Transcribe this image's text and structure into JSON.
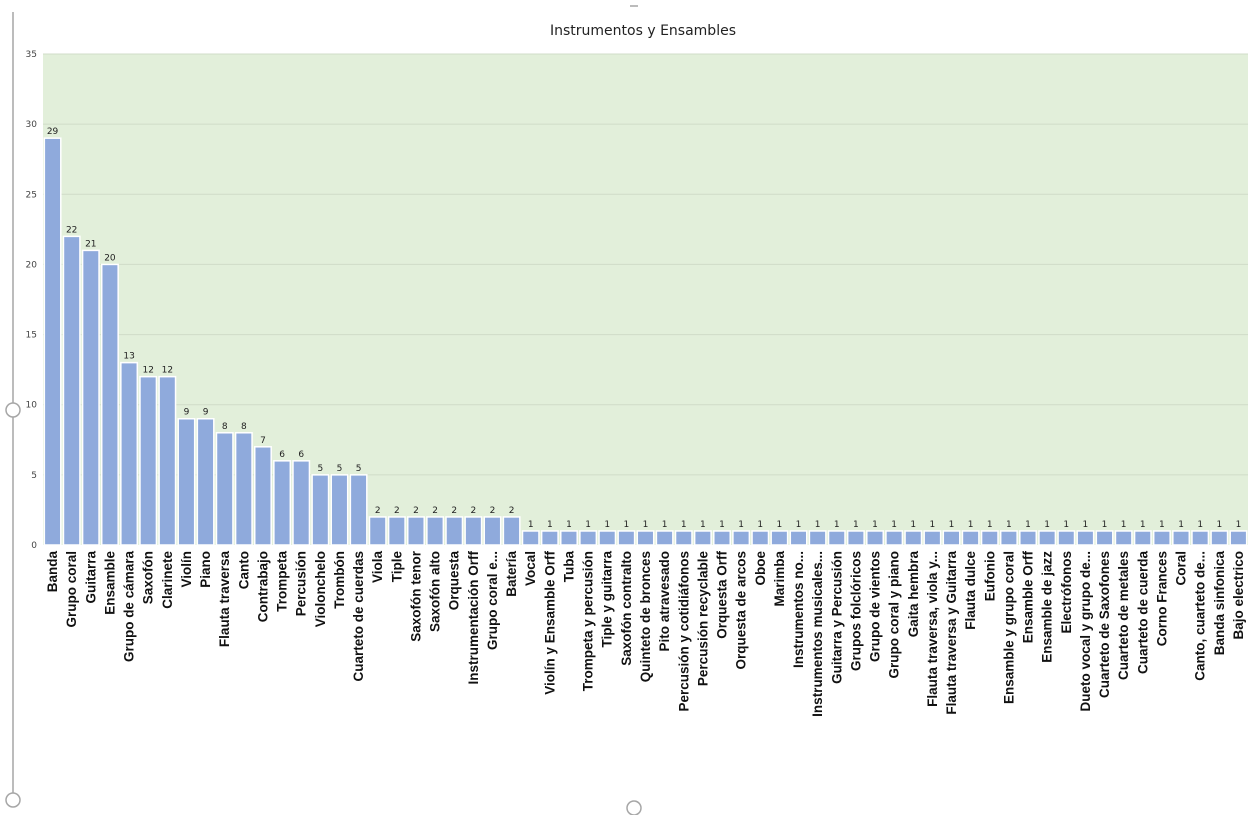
{
  "chart_data": {
    "type": "bar",
    "title": "Instrumentos y Ensambles",
    "xlabel": "",
    "ylabel": "",
    "ylim": [
      0,
      35
    ],
    "yticks": [
      0,
      5,
      10,
      15,
      20,
      25,
      30,
      35
    ],
    "grid": true,
    "legend": "none",
    "colors": {
      "bar": "#8faadc",
      "plot_background": "#e2efda",
      "gridline": "#d0dcc8",
      "frame": "#a6a6a6"
    },
    "categories": [
      "Banda",
      "Grupo coral",
      "Guitarra",
      "Ensamble",
      "Grupo de cámara",
      "Saxofón",
      "Clarinete",
      "Violín",
      "Piano",
      "Flauta traversa",
      "Canto",
      "Contrabajo",
      "Trompeta",
      "Percusión",
      "Violonchelo",
      "Trombón",
      "Cuarteto de cuerdas",
      "Viola",
      "Tiple",
      "Saxofón tenor",
      "Saxofón alto",
      "Orquesta",
      "Instrumentación Orff",
      "Grupo coral e...",
      "Batería",
      "Vocal",
      "Violín y Ensamble Orff",
      "Tuba",
      "Trompeta y percusión",
      "Tiple y guitarra",
      "Saxofón contralto",
      "Quinteto de bronces",
      "Pito atravesado",
      "Percusión y cotidiáfonos",
      "Percusión recyclable",
      "Orquesta Orff",
      "Orquesta de arcos",
      "Oboe",
      "Marimba",
      "Instrumentos no...",
      "Instrumentos musicales...",
      "Guitarra y Percusión",
      "Grupos folclóricos",
      "Grupo de vientos",
      "Grupo coral y piano",
      "Gaita hembra",
      "Flauta traversa, viola y...",
      "Flauta traversa y Guitarra",
      "Flauta dulce",
      "Eufonio",
      "Ensamble y grupo coral",
      "Ensamble Orff",
      "Ensamble de jazz",
      "Electrófonos",
      "Dueto vocal y grupo de...",
      "Cuarteto de Saxofones",
      "Cuarteto de metales",
      "Cuarteto de cuerda",
      "Corno Frances",
      "Coral",
      "Canto, cuarteto de...",
      "Banda sinfonica",
      "Bajo electrico"
    ],
    "values": [
      29,
      22,
      21,
      20,
      13,
      12,
      12,
      9,
      9,
      8,
      8,
      7,
      6,
      6,
      5,
      5,
      5,
      2,
      2,
      2,
      2,
      2,
      2,
      2,
      2,
      1,
      1,
      1,
      1,
      1,
      1,
      1,
      1,
      1,
      1,
      1,
      1,
      1,
      1,
      1,
      1,
      1,
      1,
      1,
      1,
      1,
      1,
      1,
      1,
      1,
      1,
      1,
      1,
      1,
      1,
      1,
      1,
      1,
      1,
      1,
      1,
      1,
      1
    ]
  }
}
